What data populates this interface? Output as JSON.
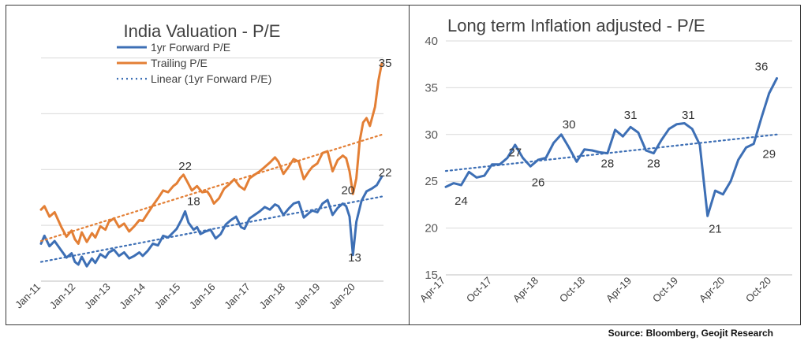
{
  "charts": [
    {
      "type": "line",
      "title": "India Valuation - P/E",
      "x_tick_labels": [
        "Jan-11",
        "Jan-12",
        "Jan-13",
        "Jan-14",
        "Jan-15",
        "Jan-16",
        "Jan-17",
        "Jan-18",
        "Jan-19",
        "Jan-20"
      ],
      "x_range": [
        2011.0,
        2021.1
      ],
      "y_range": [
        10,
        38
      ],
      "grid": true,
      "y_axis_labels_shown": false,
      "legend_position": "top-left",
      "series": [
        {
          "name": "1yr Forward P/E",
          "color": "#3d6fb5",
          "style": "solid",
          "points": [
            [
              2011.0,
              14.3
            ],
            [
              2011.1,
              15.2
            ],
            [
              2011.25,
              14.0
            ],
            [
              2011.4,
              14.6
            ],
            [
              2011.6,
              13.5
            ],
            [
              2011.75,
              12.7
            ],
            [
              2011.9,
              13.2
            ],
            [
              2012.0,
              12.2
            ],
            [
              2012.1,
              11.9
            ],
            [
              2012.2,
              12.8
            ],
            [
              2012.35,
              11.7
            ],
            [
              2012.5,
              12.6
            ],
            [
              2012.6,
              12.1
            ],
            [
              2012.75,
              13.1
            ],
            [
              2012.9,
              12.7
            ],
            [
              2013.0,
              13.3
            ],
            [
              2013.15,
              13.6
            ],
            [
              2013.3,
              12.9
            ],
            [
              2013.45,
              13.3
            ],
            [
              2013.6,
              12.6
            ],
            [
              2013.75,
              12.9
            ],
            [
              2013.9,
              13.3
            ],
            [
              2014.0,
              12.9
            ],
            [
              2014.15,
              13.5
            ],
            [
              2014.3,
              14.3
            ],
            [
              2014.45,
              14.1
            ],
            [
              2014.6,
              15.2
            ],
            [
              2014.75,
              15.0
            ],
            [
              2014.9,
              15.6
            ],
            [
              2015.0,
              16.0
            ],
            [
              2015.15,
              17.1
            ],
            [
              2015.25,
              18.0
            ],
            [
              2015.35,
              16.7
            ],
            [
              2015.5,
              15.9
            ],
            [
              2015.6,
              16.2
            ],
            [
              2015.7,
              15.4
            ],
            [
              2015.85,
              15.7
            ],
            [
              2016.0,
              15.9
            ],
            [
              2016.15,
              14.9
            ],
            [
              2016.3,
              15.4
            ],
            [
              2016.45,
              16.5
            ],
            [
              2016.6,
              17.0
            ],
            [
              2016.75,
              17.4
            ],
            [
              2016.9,
              16.2
            ],
            [
              2017.0,
              16.0
            ],
            [
              2017.15,
              17.2
            ],
            [
              2017.3,
              17.6
            ],
            [
              2017.45,
              18.0
            ],
            [
              2017.6,
              18.5
            ],
            [
              2017.75,
              18.2
            ],
            [
              2017.9,
              18.8
            ],
            [
              2018.0,
              18.6
            ],
            [
              2018.15,
              17.6
            ],
            [
              2018.3,
              18.3
            ],
            [
              2018.45,
              18.9
            ],
            [
              2018.6,
              19.1
            ],
            [
              2018.75,
              17.3
            ],
            [
              2018.9,
              17.8
            ],
            [
              2019.0,
              18.1
            ],
            [
              2019.15,
              17.9
            ],
            [
              2019.3,
              18.9
            ],
            [
              2019.45,
              19.3
            ],
            [
              2019.6,
              17.6
            ],
            [
              2019.75,
              18.4
            ],
            [
              2019.9,
              18.9
            ],
            [
              2020.0,
              18.6
            ],
            [
              2020.1,
              17.4
            ],
            [
              2020.2,
              13.0
            ],
            [
              2020.3,
              16.8
            ],
            [
              2020.45,
              19.2
            ],
            [
              2020.6,
              20.3
            ],
            [
              2020.75,
              20.6
            ],
            [
              2020.9,
              21.0
            ],
            [
              2021.05,
              22.0
            ]
          ]
        },
        {
          "name": "Trailing P/E",
          "color": "#e37f35",
          "style": "solid",
          "points": [
            [
              2011.0,
              18.2
            ],
            [
              2011.1,
              18.6
            ],
            [
              2011.25,
              17.4
            ],
            [
              2011.4,
              17.9
            ],
            [
              2011.6,
              16.2
            ],
            [
              2011.75,
              15.1
            ],
            [
              2011.9,
              15.8
            ],
            [
              2012.0,
              14.8
            ],
            [
              2012.1,
              14.3
            ],
            [
              2012.2,
              15.6
            ],
            [
              2012.35,
              14.5
            ],
            [
              2012.5,
              15.5
            ],
            [
              2012.6,
              15.0
            ],
            [
              2012.75,
              16.3
            ],
            [
              2012.9,
              15.9
            ],
            [
              2013.0,
              16.8
            ],
            [
              2013.15,
              17.2
            ],
            [
              2013.3,
              16.2
            ],
            [
              2013.45,
              16.6
            ],
            [
              2013.6,
              15.7
            ],
            [
              2013.75,
              16.3
            ],
            [
              2013.9,
              17.0
            ],
            [
              2014.0,
              16.9
            ],
            [
              2014.15,
              17.8
            ],
            [
              2014.3,
              18.7
            ],
            [
              2014.45,
              19.5
            ],
            [
              2014.6,
              20.4
            ],
            [
              2014.75,
              20.2
            ],
            [
              2014.9,
              20.9
            ],
            [
              2015.0,
              21.2
            ],
            [
              2015.1,
              21.8
            ],
            [
              2015.2,
              22.2
            ],
            [
              2015.3,
              21.5
            ],
            [
              2015.45,
              20.4
            ],
            [
              2015.6,
              20.9
            ],
            [
              2015.75,
              20.2
            ],
            [
              2015.9,
              20.3
            ],
            [
              2016.0,
              19.7
            ],
            [
              2016.1,
              18.9
            ],
            [
              2016.25,
              19.5
            ],
            [
              2016.4,
              20.6
            ],
            [
              2016.55,
              21.1
            ],
            [
              2016.7,
              21.7
            ],
            [
              2016.85,
              20.9
            ],
            [
              2017.0,
              20.5
            ],
            [
              2017.15,
              21.8
            ],
            [
              2017.3,
              22.2
            ],
            [
              2017.45,
              22.6
            ],
            [
              2017.6,
              23.1
            ],
            [
              2017.75,
              23.6
            ],
            [
              2017.9,
              24.2
            ],
            [
              2018.0,
              23.7
            ],
            [
              2018.15,
              22.3
            ],
            [
              2018.3,
              23.1
            ],
            [
              2018.45,
              24.0
            ],
            [
              2018.6,
              23.7
            ],
            [
              2018.75,
              21.7
            ],
            [
              2018.9,
              22.6
            ],
            [
              2019.0,
              23.1
            ],
            [
              2019.15,
              23.5
            ],
            [
              2019.3,
              24.7
            ],
            [
              2019.45,
              24.9
            ],
            [
              2019.6,
              22.6
            ],
            [
              2019.75,
              23.9
            ],
            [
              2019.9,
              24.4
            ],
            [
              2020.0,
              24.1
            ],
            [
              2020.1,
              22.6
            ],
            [
              2020.2,
              20.0
            ],
            [
              2020.3,
              21.8
            ],
            [
              2020.4,
              26.1
            ],
            [
              2020.5,
              28.2
            ],
            [
              2020.6,
              28.7
            ],
            [
              2020.7,
              27.8
            ],
            [
              2020.85,
              30.0
            ],
            [
              2020.95,
              33.0
            ],
            [
              2021.05,
              35.0
            ]
          ]
        },
        {
          "name": "Linear (1yr Forward P/E)",
          "color": "#3d6fb5",
          "style": "dotted",
          "points": [
            [
              2011.0,
              12.2
            ],
            [
              2021.05,
              19.7
            ]
          ]
        },
        {
          "name": "",
          "color": "#e37f35",
          "style": "dotted",
          "points": [
            [
              2011.0,
              14.6
            ],
            [
              2021.05,
              26.8
            ]
          ]
        }
      ],
      "data_labels": [
        {
          "x": 2015.25,
          "y": 22,
          "text": "22"
        },
        {
          "x": 2015.5,
          "y": 18,
          "text": "18"
        },
        {
          "x": 2020.05,
          "y": 20,
          "text": "20"
        },
        {
          "x": 2020.25,
          "y": 13,
          "text": "13"
        },
        {
          "x": 2021.15,
          "y": 35,
          "text": "35"
        },
        {
          "x": 2021.15,
          "y": 22,
          "text": "22"
        }
      ]
    },
    {
      "type": "line",
      "title": "Long term Inflation adjusted - P/E",
      "x_tick_labels": [
        "Apr-17",
        "Oct-17",
        "Apr-18",
        "Oct-18",
        "Apr-19",
        "Oct-19",
        "Apr-20",
        "Oct-20"
      ],
      "x_range": [
        0,
        45
      ],
      "y_range": [
        15,
        40
      ],
      "y_tick_labels": [
        "15",
        "20",
        "25",
        "30",
        "35",
        "40"
      ],
      "grid": true,
      "legend_position": "none",
      "series": [
        {
          "name": "",
          "color": "#3d6fb5",
          "style": "solid",
          "points": [
            [
              0,
              24.4
            ],
            [
              0.5,
              24.6
            ],
            [
              1,
              24.8
            ],
            [
              2,
              24.6
            ],
            [
              3,
              26.0
            ],
            [
              4,
              25.4
            ],
            [
              5,
              25.6
            ],
            [
              6,
              26.8
            ],
            [
              7,
              26.8
            ],
            [
              8,
              27.5
            ],
            [
              9,
              28.9
            ],
            [
              10,
              27.5
            ],
            [
              11,
              26.6
            ],
            [
              12,
              27.3
            ],
            [
              13,
              27.5
            ],
            [
              14,
              29.1
            ],
            [
              15,
              30.0
            ],
            [
              16,
              28.6
            ],
            [
              17,
              27.1
            ],
            [
              18,
              28.4
            ],
            [
              19,
              28.3
            ],
            [
              20,
              28.1
            ],
            [
              21,
              28.0
            ],
            [
              22,
              30.5
            ],
            [
              23,
              29.8
            ],
            [
              24,
              30.8
            ],
            [
              25,
              30.2
            ],
            [
              26,
              28.3
            ],
            [
              27,
              28.0
            ],
            [
              28,
              29.4
            ],
            [
              29,
              30.6
            ],
            [
              30,
              31.1
            ],
            [
              31,
              31.2
            ],
            [
              32,
              30.6
            ],
            [
              33,
              28.9
            ],
            [
              34,
              21.3
            ],
            [
              35,
              24.0
            ],
            [
              36,
              23.6
            ],
            [
              37,
              25.0
            ],
            [
              38,
              27.3
            ],
            [
              39,
              28.6
            ],
            [
              40,
              29.0
            ],
            [
              41,
              31.8
            ],
            [
              42,
              34.4
            ],
            [
              43,
              36.0
            ]
          ]
        },
        {
          "name": "",
          "color": "#3d6fb5",
          "style": "dotted",
          "points": [
            [
              0,
              26.1
            ],
            [
              43,
              30.0
            ]
          ]
        }
      ],
      "data_labels": [
        {
          "x": 2,
          "y": 24,
          "text": "24"
        },
        {
          "x": 9,
          "y": 27,
          "text": "27"
        },
        {
          "x": 12,
          "y": 26,
          "text": "26"
        },
        {
          "x": 16,
          "y": 30,
          "text": "30"
        },
        {
          "x": 21,
          "y": 28,
          "text": "28"
        },
        {
          "x": 24,
          "y": 31,
          "text": "31"
        },
        {
          "x": 27,
          "y": 28,
          "text": "28"
        },
        {
          "x": 31.5,
          "y": 31,
          "text": "31"
        },
        {
          "x": 35,
          "y": 21,
          "text": "21"
        },
        {
          "x": 42,
          "y": 29,
          "text": "29"
        },
        {
          "x": 41,
          "y": 36,
          "text": "36"
        }
      ]
    }
  ],
  "source": "Source: Bloomberg, Geojit Research"
}
